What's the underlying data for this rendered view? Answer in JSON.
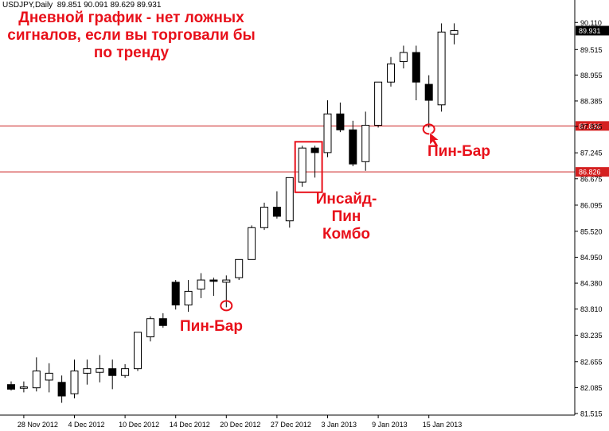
{
  "header": {
    "symbol": "USDJPY,Daily",
    "ohlc": "89.851 90.091 89.629 89.931"
  },
  "annotations": {
    "title": "Дневной график - нет ложных сигналов, если вы торговали бы по тренду",
    "pin_bar_1": "Пин-Бар",
    "inside_pin_combo": "Инсайд-Пин Комбо",
    "pin_bar_2": "Пин-Бар"
  },
  "colors": {
    "annotation": "#e8101a",
    "level_line": "#cc2020",
    "level_label_bg": "#d42020",
    "current_label_bg": "#000000"
  },
  "chart_data": {
    "type": "candlestick",
    "ylim": [
      81.515,
      90.167
    ],
    "y_ticks": [
      "90.110",
      "89.515",
      "88.955",
      "88.385",
      "87.825",
      "87.245",
      "86.675",
      "86.095",
      "85.520",
      "84.950",
      "84.380",
      "83.810",
      "83.235",
      "82.655",
      "82.085",
      "81.515"
    ],
    "x_tick_labels": [
      {
        "label": "28 Nov 2012",
        "index": 1
      },
      {
        "label": "4 Dec 2012",
        "index": 5
      },
      {
        "label": "10 Dec 2012",
        "index": 9
      },
      {
        "label": "14 Dec 2012",
        "index": 13
      },
      {
        "label": "20 Dec 2012",
        "index": 17
      },
      {
        "label": "27 Dec 2012",
        "index": 21
      },
      {
        "label": "3 Jan 2013",
        "index": 25
      },
      {
        "label": "9 Jan 2013",
        "index": 29
      },
      {
        "label": "15 Jan 2013",
        "index": 33
      }
    ],
    "levels": [
      {
        "value": 87.836,
        "label": "87.836"
      },
      {
        "value": 86.826,
        "label": "86.826"
      }
    ],
    "current_price": {
      "value": 89.931,
      "label": "89.931"
    },
    "candles": [
      {
        "o": 82.15,
        "h": 82.22,
        "l": 82.02,
        "c": 82.05
      },
      {
        "o": 82.07,
        "h": 82.22,
        "l": 81.98,
        "c": 82.1
      },
      {
        "o": 82.08,
        "h": 82.75,
        "l": 82.0,
        "c": 82.45
      },
      {
        "o": 82.25,
        "h": 82.62,
        "l": 81.98,
        "c": 82.4
      },
      {
        "o": 82.2,
        "h": 82.35,
        "l": 81.75,
        "c": 81.9
      },
      {
        "o": 81.95,
        "h": 82.7,
        "l": 81.85,
        "c": 82.45
      },
      {
        "o": 82.4,
        "h": 82.7,
        "l": 82.15,
        "c": 82.5
      },
      {
        "o": 82.42,
        "h": 82.8,
        "l": 82.2,
        "c": 82.5
      },
      {
        "o": 82.5,
        "h": 82.7,
        "l": 82.05,
        "c": 82.35
      },
      {
        "o": 82.35,
        "h": 82.6,
        "l": 82.3,
        "c": 82.5
      },
      {
        "o": 82.5,
        "h": 83.3,
        "l": 82.45,
        "c": 83.3
      },
      {
        "o": 83.2,
        "h": 83.65,
        "l": 83.1,
        "c": 83.6
      },
      {
        "o": 83.6,
        "h": 83.72,
        "l": 83.4,
        "c": 83.45
      },
      {
        "o": 84.4,
        "h": 84.45,
        "l": 83.8,
        "c": 83.9
      },
      {
        "o": 83.9,
        "h": 84.45,
        "l": 83.75,
        "c": 84.2
      },
      {
        "o": 84.25,
        "h": 84.6,
        "l": 84.05,
        "c": 84.45
      },
      {
        "o": 84.45,
        "h": 84.5,
        "l": 84.1,
        "c": 84.42
      },
      {
        "o": 84.4,
        "h": 84.55,
        "l": 83.85,
        "c": 84.45
      },
      {
        "o": 84.5,
        "h": 84.9,
        "l": 84.45,
        "c": 84.9
      },
      {
        "o": 84.9,
        "h": 85.65,
        "l": 84.9,
        "c": 85.6
      },
      {
        "o": 85.6,
        "h": 86.15,
        "l": 85.55,
        "c": 86.05
      },
      {
        "o": 86.05,
        "h": 86.4,
        "l": 85.8,
        "c": 85.85
      },
      {
        "o": 85.75,
        "h": 86.7,
        "l": 85.6,
        "c": 86.7
      },
      {
        "o": 86.6,
        "h": 87.4,
        "l": 86.5,
        "c": 87.35
      },
      {
        "o": 87.35,
        "h": 87.4,
        "l": 86.7,
        "c": 87.25
      },
      {
        "o": 87.25,
        "h": 88.4,
        "l": 87.15,
        "c": 88.1
      },
      {
        "o": 88.1,
        "h": 88.35,
        "l": 87.7,
        "c": 87.75
      },
      {
        "o": 87.75,
        "h": 87.95,
        "l": 86.95,
        "c": 87.0
      },
      {
        "o": 87.05,
        "h": 88.15,
        "l": 86.85,
        "c": 87.85
      },
      {
        "o": 87.85,
        "h": 88.8,
        "l": 87.8,
        "c": 88.8
      },
      {
        "o": 88.8,
        "h": 89.35,
        "l": 88.7,
        "c": 89.2
      },
      {
        "o": 89.25,
        "h": 89.6,
        "l": 89.1,
        "c": 89.45
      },
      {
        "o": 89.45,
        "h": 89.6,
        "l": 88.4,
        "c": 88.8
      },
      {
        "o": 88.75,
        "h": 88.95,
        "l": 87.8,
        "c": 88.4
      },
      {
        "o": 88.3,
        "h": 90.09,
        "l": 88.15,
        "c": 89.9
      },
      {
        "o": 89.85,
        "h": 90.09,
        "l": 89.63,
        "c": 89.93
      }
    ],
    "marked": {
      "pin_bar_1_index": 17,
      "inside_pin_combo_indices": [
        23,
        24
      ],
      "pin_bar_2_index": 33
    }
  }
}
